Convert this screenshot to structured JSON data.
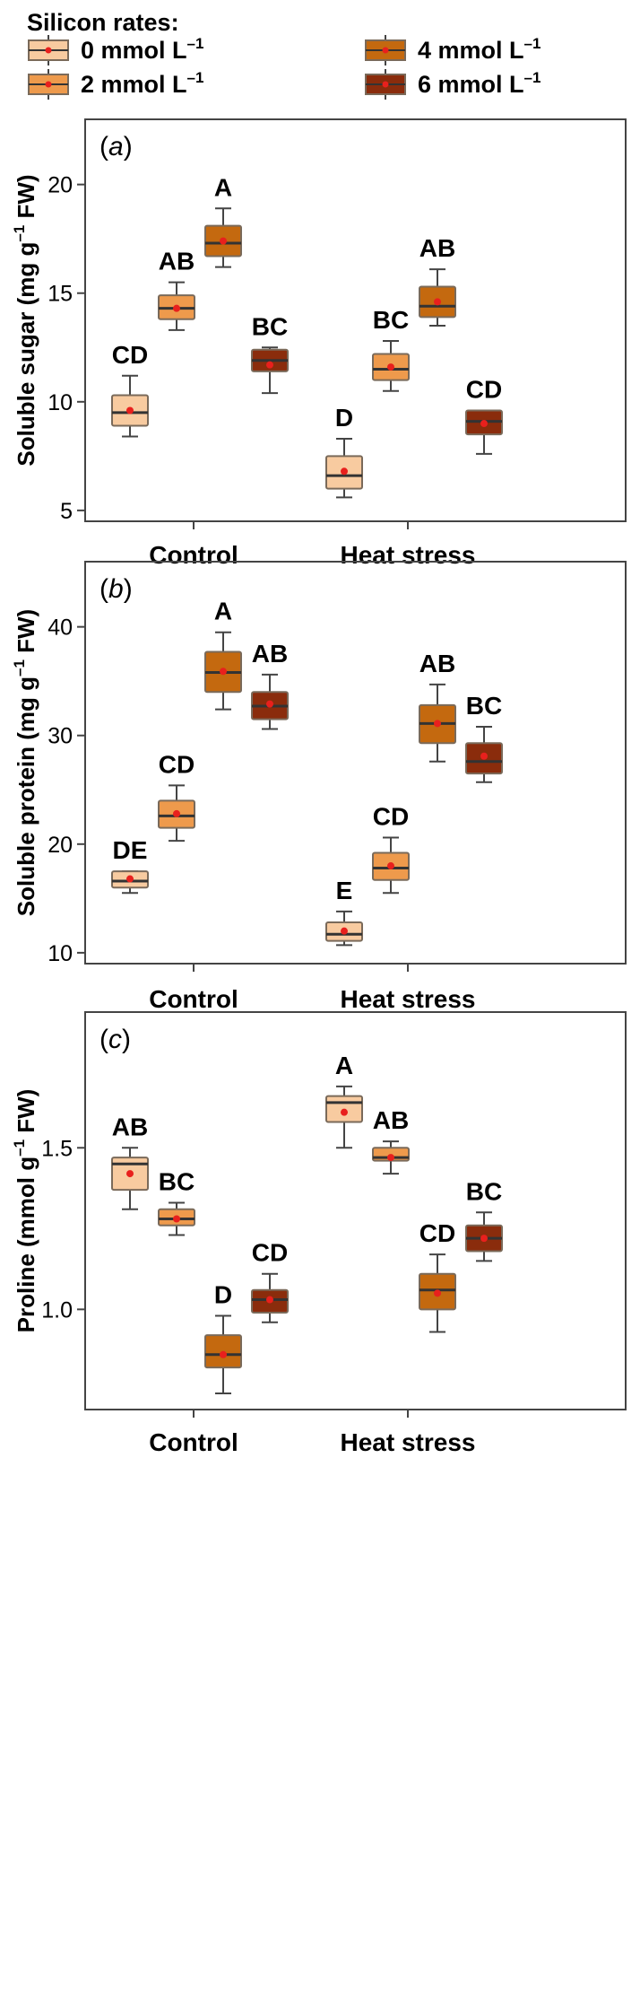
{
  "legend": {
    "title": "Silicon rates:",
    "items": [
      {
        "label": "0 mmol L",
        "sup": "–1",
        "color": "#f8cba0"
      },
      {
        "label": "2 mmol L",
        "sup": "–1",
        "color": "#ee9a4c"
      },
      {
        "label": "4 mmol L",
        "sup": "–1",
        "color": "#c4690f"
      },
      {
        "label": "6 mmol L",
        "sup": "–1",
        "color": "#8a2c0c"
      }
    ]
  },
  "colors": {
    "mean_marker": "#e8201d",
    "median_line": "#333333",
    "box_stroke": "#7a6a5a",
    "whisker": "#444444",
    "frame": "#444444"
  },
  "chart_data": [
    {
      "type": "box",
      "tag": "a",
      "ylabel_main": "Soluble sugar (mg g",
      "ylabel_sup": "–1",
      "ylabel_end": " FW)",
      "ylim": [
        4.5,
        23
      ],
      "yticks": [
        5,
        10,
        15,
        20
      ],
      "categories": [
        "Control",
        "Heat stress"
      ],
      "series": [
        {
          "boxes": [
            {
              "min": 8.4,
              "q1": 8.9,
              "median": 9.5,
              "q3": 10.3,
              "max": 11.2,
              "mean": 9.6,
              "letter": "CD"
            },
            {
              "min": 5.6,
              "q1": 6.0,
              "median": 6.6,
              "q3": 7.5,
              "max": 8.3,
              "mean": 6.8,
              "letter": "D"
            }
          ]
        },
        {
          "boxes": [
            {
              "min": 13.3,
              "q1": 13.8,
              "median": 14.3,
              "q3": 14.9,
              "max": 15.5,
              "mean": 14.3,
              "letter": "AB"
            },
            {
              "min": 10.5,
              "q1": 11.0,
              "median": 11.5,
              "q3": 12.2,
              "max": 12.8,
              "mean": 11.6,
              "letter": "BC"
            }
          ]
        },
        {
          "boxes": [
            {
              "min": 16.2,
              "q1": 16.7,
              "median": 17.3,
              "q3": 18.1,
              "max": 18.9,
              "mean": 17.4,
              "letter": "A"
            },
            {
              "min": 13.5,
              "q1": 13.9,
              "median": 14.4,
              "q3": 15.3,
              "max": 16.1,
              "mean": 14.6,
              "letter": "AB"
            }
          ]
        },
        {
          "boxes": [
            {
              "min": 10.4,
              "q1": 11.4,
              "median": 11.9,
              "q3": 12.4,
              "max": 12.5,
              "mean": 11.7,
              "letter": "BC"
            },
            {
              "min": 7.6,
              "q1": 8.5,
              "median": 9.1,
              "q3": 9.6,
              "max": 9.6,
              "mean": 9.0,
              "letter": "CD"
            }
          ]
        }
      ]
    },
    {
      "type": "box",
      "tag": "b",
      "ylabel_main": "Soluble protein (mg g",
      "ylabel_sup": "–1",
      "ylabel_end": " FW)",
      "ylim": [
        9,
        46
      ],
      "yticks": [
        10,
        20,
        30,
        40
      ],
      "categories": [
        "Control",
        "Heat stress"
      ],
      "series": [
        {
          "boxes": [
            {
              "min": 15.5,
              "q1": 16.0,
              "median": 16.6,
              "q3": 17.5,
              "max": 17.5,
              "mean": 16.8,
              "letter": "DE"
            },
            {
              "min": 10.7,
              "q1": 11.1,
              "median": 11.7,
              "q3": 12.8,
              "max": 13.8,
              "mean": 12.0,
              "letter": "E"
            }
          ]
        },
        {
          "boxes": [
            {
              "min": 20.3,
              "q1": 21.5,
              "median": 22.6,
              "q3": 24.0,
              "max": 25.4,
              "mean": 22.8,
              "letter": "CD"
            },
            {
              "min": 15.5,
              "q1": 16.7,
              "median": 17.8,
              "q3": 19.2,
              "max": 20.6,
              "mean": 18.0,
              "letter": "CD"
            }
          ]
        },
        {
          "boxes": [
            {
              "min": 32.4,
              "q1": 34.0,
              "median": 35.8,
              "q3": 37.7,
              "max": 39.5,
              "mean": 35.9,
              "letter": "A"
            },
            {
              "min": 27.6,
              "q1": 29.3,
              "median": 31.1,
              "q3": 32.8,
              "max": 34.7,
              "mean": 31.1,
              "letter": "AB"
            }
          ]
        },
        {
          "boxes": [
            {
              "min": 30.6,
              "q1": 31.5,
              "median": 32.7,
              "q3": 34.0,
              "max": 35.6,
              "mean": 32.9,
              "letter": "AB"
            },
            {
              "min": 25.7,
              "q1": 26.5,
              "median": 27.6,
              "q3": 29.3,
              "max": 30.8,
              "mean": 28.1,
              "letter": "BC"
            }
          ]
        }
      ]
    },
    {
      "type": "box",
      "tag": "c",
      "ylabel_main": "Proline (mmol g",
      "ylabel_sup": "–1",
      "ylabel_end": " FW)",
      "ylim": [
        0.69,
        1.92
      ],
      "yticks": [
        1.0,
        1.5
      ],
      "categories": [
        "Control",
        "Heat stress"
      ],
      "series": [
        {
          "boxes": [
            {
              "min": 1.31,
              "q1": 1.37,
              "median": 1.45,
              "q3": 1.47,
              "max": 1.5,
              "mean": 1.42,
              "letter": "AB"
            },
            {
              "min": 1.5,
              "q1": 1.58,
              "median": 1.64,
              "q3": 1.66,
              "max": 1.69,
              "mean": 1.61,
              "letter": "A"
            }
          ]
        },
        {
          "boxes": [
            {
              "min": 1.23,
              "q1": 1.26,
              "median": 1.28,
              "q3": 1.31,
              "max": 1.33,
              "mean": 1.28,
              "letter": "BC"
            },
            {
              "min": 1.42,
              "q1": 1.46,
              "median": 1.47,
              "q3": 1.5,
              "max": 1.52,
              "mean": 1.47,
              "letter": "AB"
            }
          ]
        },
        {
          "boxes": [
            {
              "min": 0.74,
              "q1": 0.82,
              "median": 0.86,
              "q3": 0.92,
              "max": 0.98,
              "mean": 0.86,
              "letter": "D"
            },
            {
              "min": 0.93,
              "q1": 1.0,
              "median": 1.06,
              "q3": 1.11,
              "max": 1.17,
              "mean": 1.05,
              "letter": "CD"
            }
          ]
        },
        {
          "boxes": [
            {
              "min": 0.96,
              "q1": 0.99,
              "median": 1.03,
              "q3": 1.06,
              "max": 1.11,
              "mean": 1.03,
              "letter": "CD"
            },
            {
              "min": 1.15,
              "q1": 1.18,
              "median": 1.22,
              "q3": 1.26,
              "max": 1.3,
              "mean": 1.22,
              "letter": "BC"
            }
          ]
        }
      ]
    }
  ]
}
